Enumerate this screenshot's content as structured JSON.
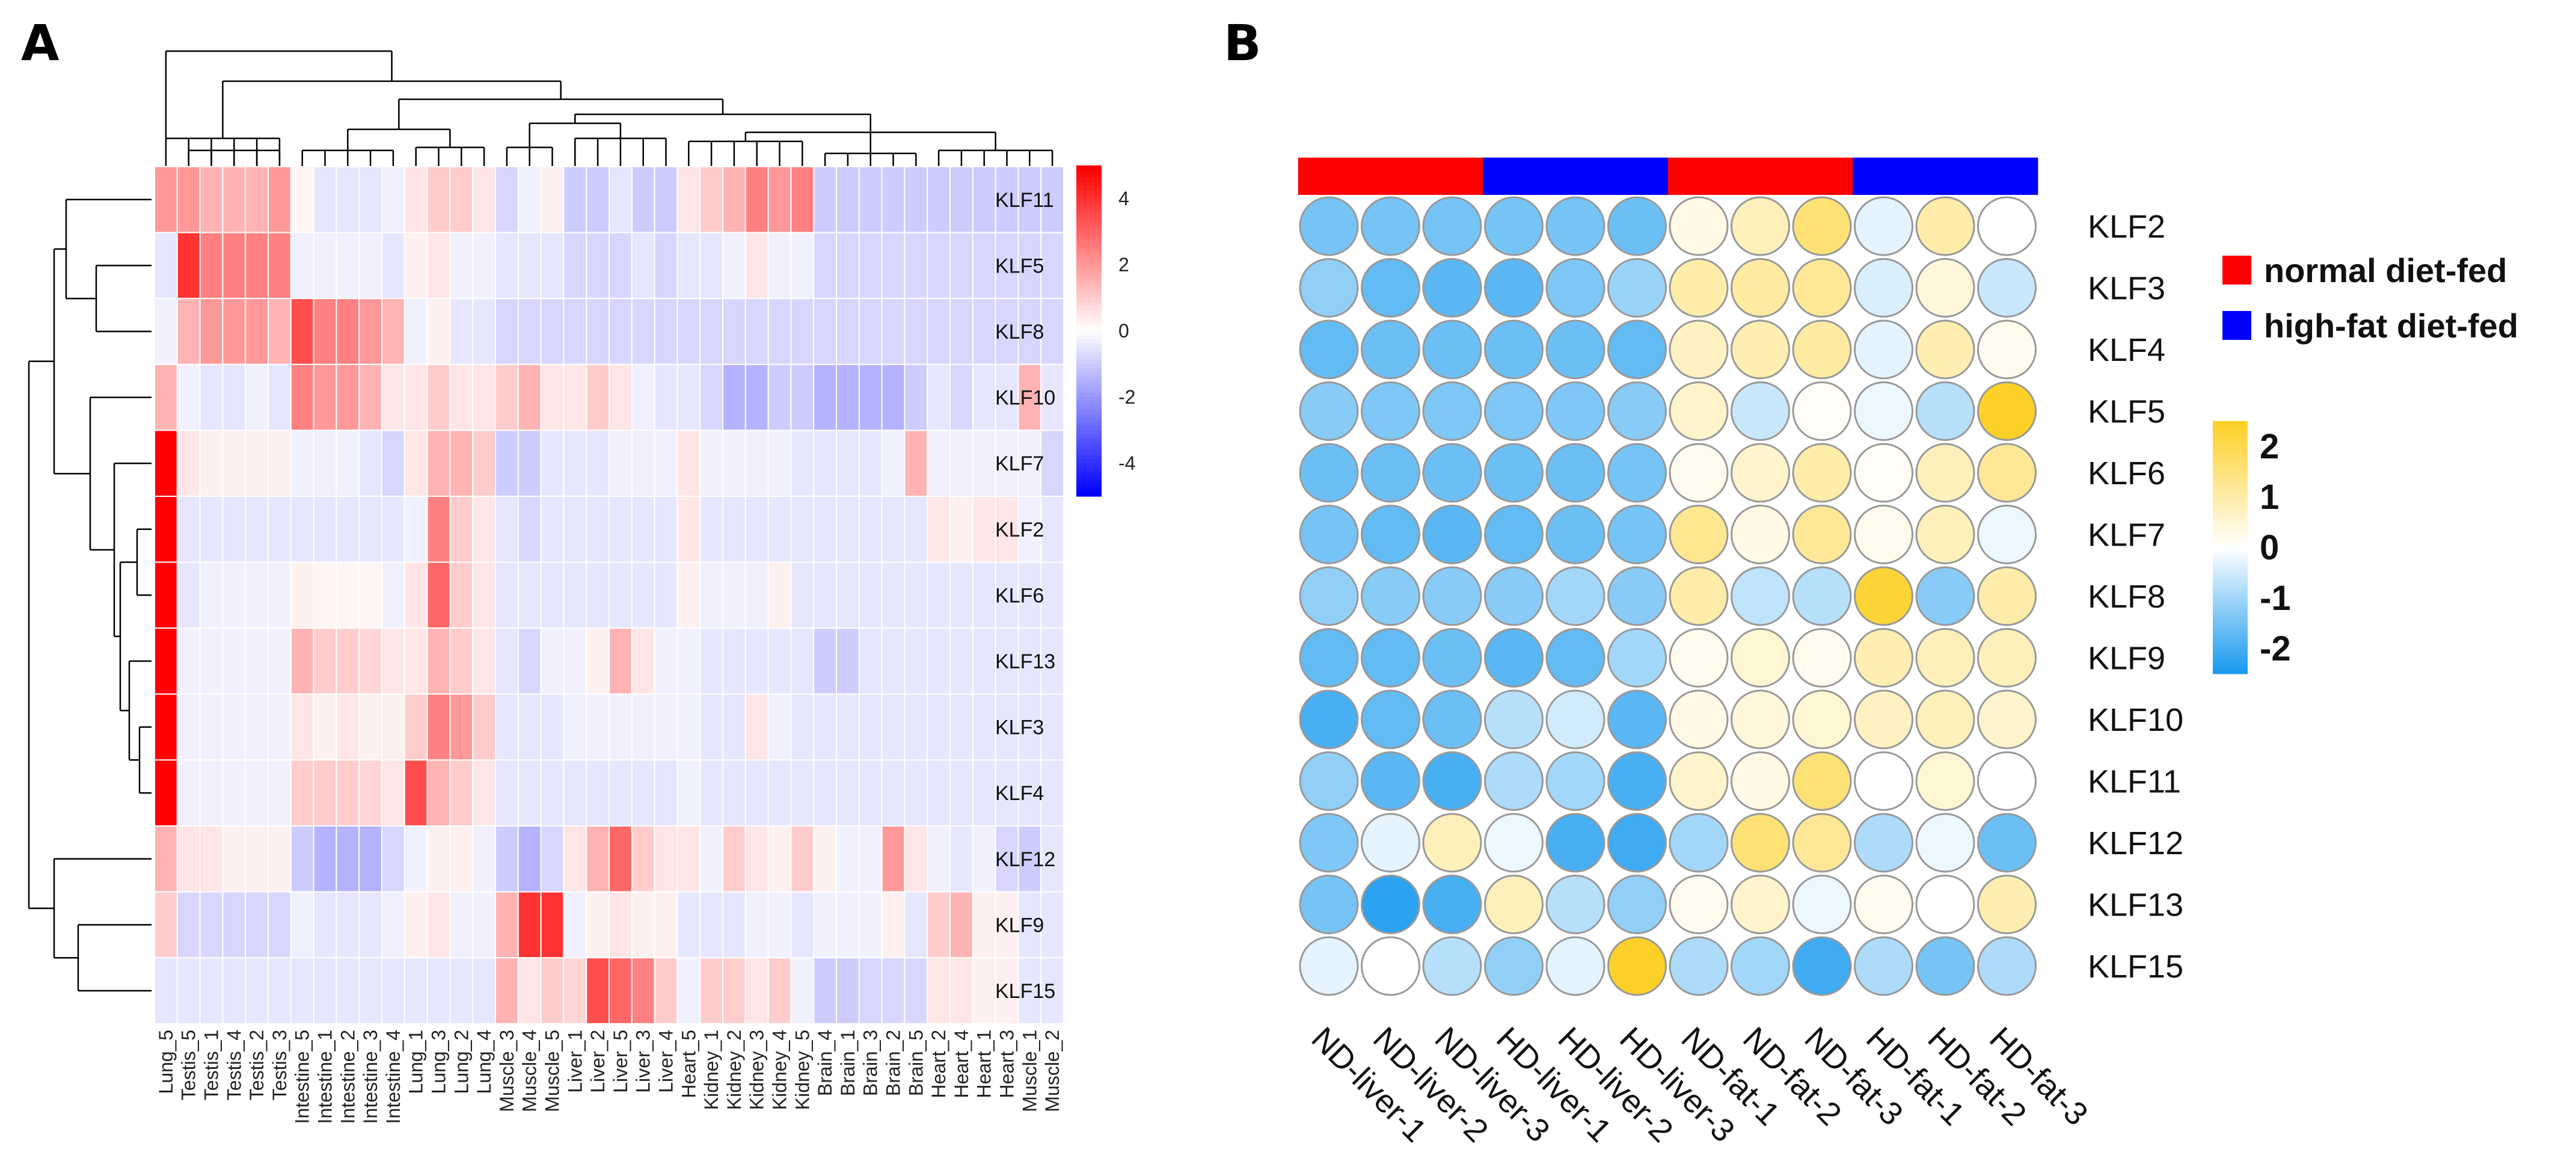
{
  "chart_data": [
    {
      "panel": "A",
      "type": "heatmap",
      "rows": [
        "KLF11",
        "KLF5",
        "KLF8",
        "KLF10",
        "KLF7",
        "KLF2",
        "KLF6",
        "KLF13",
        "KLF3",
        "KLF4",
        "KLF12",
        "KLF9",
        "KLF15"
      ],
      "columns": [
        "Lung_5",
        "Testis_5",
        "Testis_1",
        "Testis_4",
        "Testis_2",
        "Testis_3",
        "Intestine_5",
        "Intestine_1",
        "Intestine_2",
        "Intestine_3",
        "Intestine_4",
        "Lung_1",
        "Lung_3",
        "Lung_2",
        "Lung_4",
        "Muscle_3",
        "Muscle_4",
        "Muscle_5",
        "Liver_1",
        "Liver_2",
        "Liver_5",
        "Liver_3",
        "Liver_4",
        "Heart_5",
        "Kidney_1",
        "Kidney_2",
        "Kidney_3",
        "Kidney_4",
        "Kidney_5",
        "Brain_4",
        "Brain_1",
        "Brain_3",
        "Brain_2",
        "Brain_5",
        "Heart_2",
        "Heart_4",
        "Heart_1",
        "Heart_3",
        "Muscle_1",
        "Muscle_2"
      ],
      "values": [
        [
          2.0,
          2.0,
          1.5,
          1.5,
          1.5,
          2.0,
          0.2,
          -0.5,
          -0.5,
          -0.5,
          -0.3,
          0.5,
          1.0,
          1.0,
          0.5,
          -0.8,
          -0.3,
          0.3,
          -1.0,
          -1.0,
          -0.5,
          -1.0,
          -1.0,
          0.5,
          1.0,
          1.5,
          2.5,
          2.0,
          2.5,
          -1.0,
          -1.0,
          -1.0,
          -1.0,
          -1.0,
          -1.0,
          -1.0,
          -1.0,
          -1.0,
          -1.0,
          -1.0
        ],
        [
          -0.5,
          4.0,
          2.5,
          2.5,
          2.5,
          2.5,
          -0.3,
          -0.3,
          -0.3,
          -0.3,
          -0.5,
          0.3,
          0.5,
          -0.3,
          -0.3,
          -0.5,
          -0.5,
          -0.5,
          -0.8,
          -0.8,
          -0.8,
          -0.5,
          -0.8,
          -0.5,
          -0.5,
          -0.3,
          0.5,
          -0.3,
          -0.3,
          -0.8,
          -0.8,
          -0.8,
          -0.8,
          -0.8,
          -0.8,
          -0.8,
          -0.8,
          -0.8,
          -0.8,
          -0.8
        ],
        [
          -0.3,
          1.5,
          2.0,
          2.0,
          2.0,
          1.5,
          3.5,
          2.5,
          2.5,
          2.0,
          1.5,
          -0.3,
          0.3,
          -0.5,
          -0.5,
          -0.8,
          -0.8,
          -0.8,
          -0.8,
          -0.8,
          -0.8,
          -0.8,
          -0.8,
          -0.8,
          -0.8,
          -0.8,
          -0.8,
          -0.8,
          -0.8,
          -0.8,
          -0.8,
          -0.8,
          -0.8,
          -0.8,
          -0.8,
          -0.8,
          -0.8,
          -0.8,
          -0.8,
          -0.8
        ],
        [
          1.5,
          -0.3,
          -0.5,
          -0.5,
          -0.3,
          -0.5,
          2.5,
          2.0,
          2.0,
          1.5,
          0.5,
          0.5,
          1.0,
          0.5,
          0.5,
          1.0,
          1.5,
          0.5,
          0.5,
          1.0,
          0.5,
          -0.3,
          -0.5,
          -0.5,
          -0.8,
          -1.5,
          -1.5,
          -1.0,
          -1.0,
          -1.5,
          -1.5,
          -1.5,
          -1.5,
          -1.0,
          -0.5,
          -0.8,
          -0.5,
          -0.5,
          1.5,
          -0.5
        ],
        [
          5.0,
          0.5,
          0.3,
          0.3,
          0.3,
          0.3,
          -0.3,
          -0.3,
          -0.3,
          -0.5,
          -0.8,
          0.5,
          1.5,
          1.5,
          1.0,
          -1.0,
          -1.0,
          -0.5,
          -0.5,
          -0.5,
          -0.3,
          -0.3,
          -0.3,
          0.5,
          -0.3,
          -0.3,
          -0.3,
          -0.3,
          -0.5,
          -0.5,
          -0.5,
          -0.5,
          -0.3,
          1.5,
          -0.3,
          -0.3,
          -0.3,
          -0.3,
          -0.3,
          -0.8
        ],
        [
          5.0,
          -0.5,
          -0.5,
          -0.5,
          -0.5,
          -0.5,
          -0.5,
          -0.5,
          -0.5,
          -0.5,
          -0.5,
          -0.3,
          2.5,
          1.0,
          0.5,
          -0.5,
          -0.8,
          -0.5,
          -0.5,
          -0.5,
          -0.5,
          -0.5,
          -0.5,
          0.5,
          -0.5,
          -0.5,
          -0.5,
          -0.5,
          -0.5,
          -0.5,
          -0.5,
          -0.5,
          -0.5,
          -0.5,
          0.5,
          0.3,
          0.5,
          0.5,
          -0.3,
          -0.5
        ],
        [
          5.0,
          -0.5,
          -0.3,
          -0.3,
          -0.3,
          -0.3,
          0.3,
          0.2,
          0.2,
          0.2,
          -0.3,
          0.5,
          3.0,
          1.0,
          0.5,
          -0.5,
          -0.5,
          -0.5,
          -0.5,
          -0.5,
          -0.5,
          -0.5,
          -0.5,
          0.3,
          -0.3,
          -0.3,
          -0.3,
          0.3,
          -0.5,
          -0.5,
          -0.5,
          -0.5,
          -0.5,
          -0.5,
          -0.5,
          -0.5,
          -0.5,
          -0.5,
          -0.5,
          -0.5
        ],
        [
          5.0,
          -0.3,
          -0.3,
          -0.3,
          -0.3,
          -0.3,
          1.5,
          1.0,
          1.0,
          0.8,
          0.5,
          0.5,
          1.5,
          1.0,
          0.5,
          -0.5,
          -0.8,
          -0.3,
          -0.3,
          0.3,
          1.5,
          0.5,
          -0.3,
          -0.3,
          -0.5,
          -0.5,
          -0.5,
          -0.5,
          -0.5,
          -1.0,
          -1.0,
          -0.5,
          -0.5,
          -0.5,
          -0.5,
          -0.5,
          -0.5,
          -0.5,
          -0.5,
          -0.5
        ],
        [
          5.0,
          -0.3,
          -0.3,
          -0.3,
          -0.3,
          -0.3,
          0.5,
          0.3,
          0.5,
          0.3,
          0.3,
          1.0,
          2.5,
          2.0,
          1.0,
          -0.5,
          -0.5,
          -0.5,
          -0.3,
          -0.3,
          -0.3,
          -0.3,
          -0.3,
          -0.3,
          -0.5,
          -0.5,
          0.5,
          -0.3,
          -0.5,
          -0.5,
          -0.5,
          -0.5,
          -0.5,
          -0.5,
          -0.5,
          -0.5,
          -0.5,
          -0.5,
          -0.5,
          -0.5
        ],
        [
          5.0,
          -0.3,
          -0.3,
          -0.3,
          -0.3,
          -0.3,
          1.0,
          1.0,
          1.0,
          0.8,
          0.5,
          3.5,
          1.5,
          1.0,
          0.5,
          -0.5,
          -0.5,
          -0.5,
          -0.5,
          -0.5,
          -0.5,
          -0.5,
          -0.5,
          -0.3,
          -0.5,
          -0.5,
          -0.5,
          -0.5,
          -0.5,
          -0.5,
          -0.5,
          -0.5,
          -0.5,
          -0.5,
          -0.5,
          -0.5,
          -0.5,
          -0.5,
          -0.5,
          -0.5
        ],
        [
          1.5,
          0.5,
          0.5,
          0.3,
          0.3,
          0.3,
          -1.0,
          -1.5,
          -1.5,
          -1.5,
          -0.8,
          -0.3,
          0.3,
          0.3,
          -0.3,
          -1.0,
          -1.5,
          -0.8,
          0.5,
          1.5,
          3.0,
          1.0,
          0.5,
          0.5,
          -0.3,
          1.0,
          0.5,
          0.3,
          1.0,
          0.3,
          -0.3,
          -0.3,
          2.0,
          0.5,
          -0.3,
          -0.5,
          -0.3,
          -0.8,
          -1.0,
          -0.5
        ],
        [
          1.0,
          -0.8,
          -0.8,
          -0.8,
          -0.8,
          -0.8,
          -0.3,
          -0.5,
          -0.5,
          -0.5,
          -0.3,
          0.3,
          0.5,
          -0.3,
          -0.3,
          1.5,
          4.0,
          4.0,
          -0.3,
          0.3,
          0.5,
          0.3,
          0.3,
          -0.5,
          -0.5,
          -0.5,
          -0.3,
          -0.3,
          -0.5,
          -0.3,
          -0.3,
          -0.3,
          0.3,
          -0.5,
          1.0,
          1.5,
          0.3,
          0.3,
          -0.5,
          -0.5
        ],
        [
          -0.5,
          -0.5,
          -0.5,
          -0.5,
          -0.5,
          -0.5,
          -0.5,
          -0.5,
          -0.5,
          -0.5,
          -0.5,
          -0.5,
          -0.5,
          -0.5,
          -0.5,
          1.5,
          0.5,
          1.0,
          0.8,
          3.5,
          3.0,
          2.5,
          1.0,
          -0.3,
          1.0,
          1.0,
          0.5,
          1.0,
          -0.3,
          -1.0,
          -1.0,
          -0.8,
          -0.8,
          -0.8,
          0.5,
          0.5,
          0.3,
          0.3,
          -0.5,
          -0.5
        ]
      ],
      "colorbar": {
        "ticks": [
          "4",
          "2",
          "0",
          "-2",
          "-4"
        ],
        "range": [
          -5,
          5
        ],
        "colors": [
          "#0000ff",
          "#ffffff",
          "#ff0000"
        ]
      }
    },
    {
      "panel": "B",
      "type": "heatmap",
      "rows": [
        "KLF2",
        "KLF3",
        "KLF4",
        "KLF5",
        "KLF6",
        "KLF7",
        "KLF8",
        "KLF9",
        "KLF10",
        "KLF11",
        "KLF12",
        "KLF13",
        "KLF15"
      ],
      "columns": [
        "ND-liver-1",
        "ND-liver-2",
        "ND-liver-3",
        "HD-liver-1",
        "HD-liver-2",
        "HD-liver-3",
        "ND-fat-1",
        "ND-fat-2",
        "ND-fat-3",
        "HD-fat-1",
        "HD-fat-2",
        "HD-fat-3"
      ],
      "column_groups": [
        "normal",
        "normal",
        "normal",
        "high",
        "high",
        "high",
        "normal",
        "normal",
        "normal",
        "high",
        "high",
        "high"
      ],
      "values": [
        [
          -1.5,
          -1.5,
          -1.5,
          -1.5,
          -1.5,
          -1.6,
          0.3,
          0.8,
          1.6,
          -0.3,
          1.0,
          0.0
        ],
        [
          -1.2,
          -1.7,
          -1.8,
          -1.8,
          -1.4,
          -1.1,
          1.0,
          1.1,
          1.2,
          -0.4,
          0.4,
          -0.6
        ],
        [
          -1.7,
          -1.6,
          -1.6,
          -1.6,
          -1.6,
          -1.7,
          0.7,
          0.9,
          1.1,
          -0.3,
          0.9,
          0.2
        ],
        [
          -1.3,
          -1.4,
          -1.4,
          -1.4,
          -1.4,
          -1.3,
          0.6,
          -0.6,
          0.1,
          -0.2,
          -0.8,
          2.5
        ],
        [
          -1.6,
          -1.6,
          -1.6,
          -1.6,
          -1.6,
          -1.5,
          0.2,
          0.6,
          1.0,
          0.1,
          0.8,
          1.2
        ],
        [
          -1.5,
          -1.7,
          -1.8,
          -1.7,
          -1.6,
          -1.5,
          1.3,
          0.3,
          1.2,
          0.2,
          0.8,
          -0.2
        ],
        [
          -1.2,
          -1.3,
          -1.3,
          -1.3,
          -1.0,
          -1.3,
          1.0,
          -0.7,
          -0.8,
          2.3,
          -1.3,
          1.0
        ],
        [
          -1.7,
          -1.7,
          -1.6,
          -1.8,
          -1.7,
          -1.0,
          0.2,
          0.5,
          0.2,
          0.9,
          0.8,
          0.8
        ],
        [
          -2.0,
          -1.7,
          -1.6,
          -0.8,
          -0.5,
          -1.8,
          0.3,
          0.4,
          0.5,
          0.7,
          0.8,
          0.6
        ],
        [
          -1.2,
          -1.8,
          -2.0,
          -0.9,
          -1.0,
          -2.0,
          0.6,
          0.3,
          1.6,
          0.0,
          0.5,
          0.0
        ],
        [
          -1.4,
          -0.3,
          0.8,
          -0.2,
          -2.0,
          -2.1,
          -1.0,
          1.6,
          1.2,
          -0.9,
          -0.2,
          -1.6
        ],
        [
          -1.5,
          -2.3,
          -2.0,
          0.8,
          -0.8,
          -1.2,
          0.2,
          0.6,
          -0.2,
          0.2,
          0.0,
          0.9
        ],
        [
          -0.3,
          0.0,
          -0.8,
          -1.2,
          -0.3,
          2.5,
          -0.9,
          -1.0,
          -2.1,
          -0.9,
          -1.5,
          -0.9
        ]
      ],
      "colorbar": {
        "ticks": [
          "2",
          "1",
          "0",
          "-1",
          "-2"
        ],
        "range": [
          -2.5,
          2.5
        ],
        "colors": [
          "#1a9bef",
          "#ffffff",
          "#fdd027"
        ]
      },
      "legend": [
        {
          "label": "normal diet-fed",
          "color": "#ff0000"
        },
        {
          "label": "high-fat diet-fed",
          "color": "#0000ff"
        }
      ]
    }
  ],
  "panel_labels": {
    "a": "A",
    "b": "B"
  }
}
